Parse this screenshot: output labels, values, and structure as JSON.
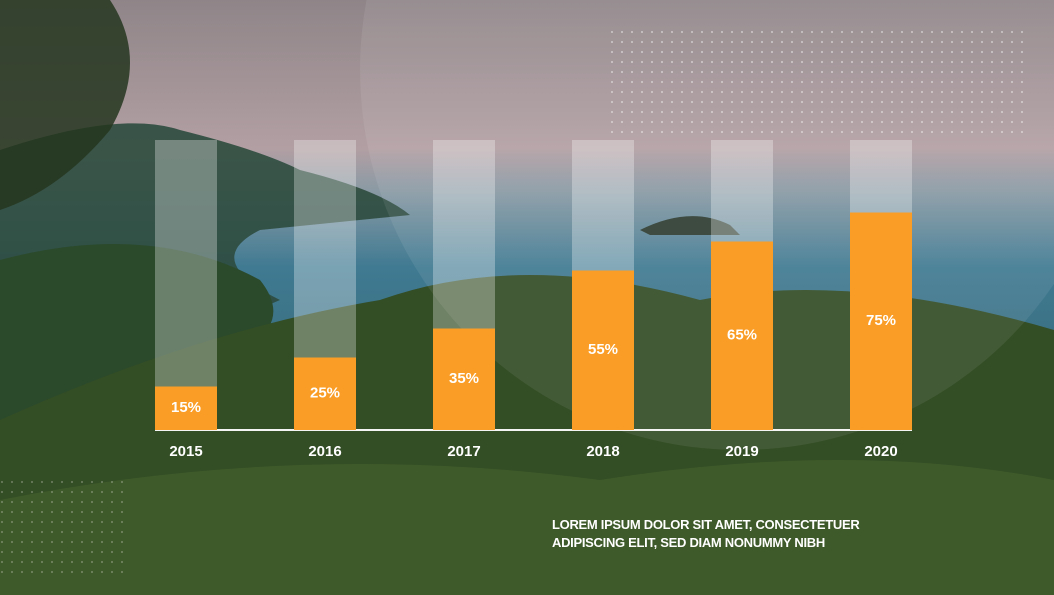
{
  "chart_data": {
    "type": "bar",
    "categories": [
      "2015",
      "2016",
      "2017",
      "2018",
      "2019",
      "2020"
    ],
    "values": [
      15,
      25,
      35,
      55,
      65,
      75
    ],
    "value_labels": [
      "15%",
      "25%",
      "35%",
      "55%",
      "65%",
      "75%"
    ],
    "color": "#f99d26",
    "ylim": [
      0,
      100
    ],
    "caption": "LOREM IPSUM DOLOR SIT AMET, CONSECTETUER ADIPISCING ELIT, SED DIAM NONUMMY NIBH"
  }
}
